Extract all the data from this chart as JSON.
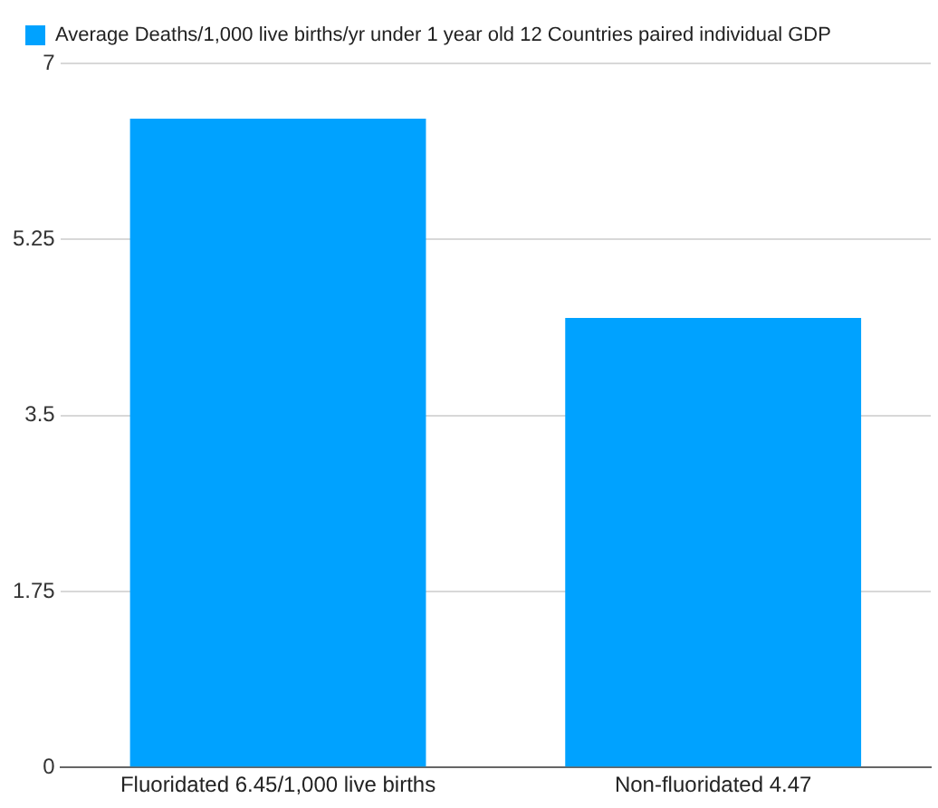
{
  "chart_data": {
    "type": "bar",
    "categories": [
      "Fluoridated 6.45/1,000 live births",
      "Non-fluoridated 4.47"
    ],
    "series": [
      {
        "name": "Average Deaths/1,000 live births/yr under 1 year old 12 Countries paired individual GDP",
        "color": "#00a2ff",
        "values": [
          6.45,
          4.47
        ]
      }
    ],
    "ylim": [
      0,
      7
    ],
    "yticks": [
      0,
      1.75,
      3.5,
      5.25,
      7
    ],
    "grid": "y",
    "legend": "top left"
  }
}
